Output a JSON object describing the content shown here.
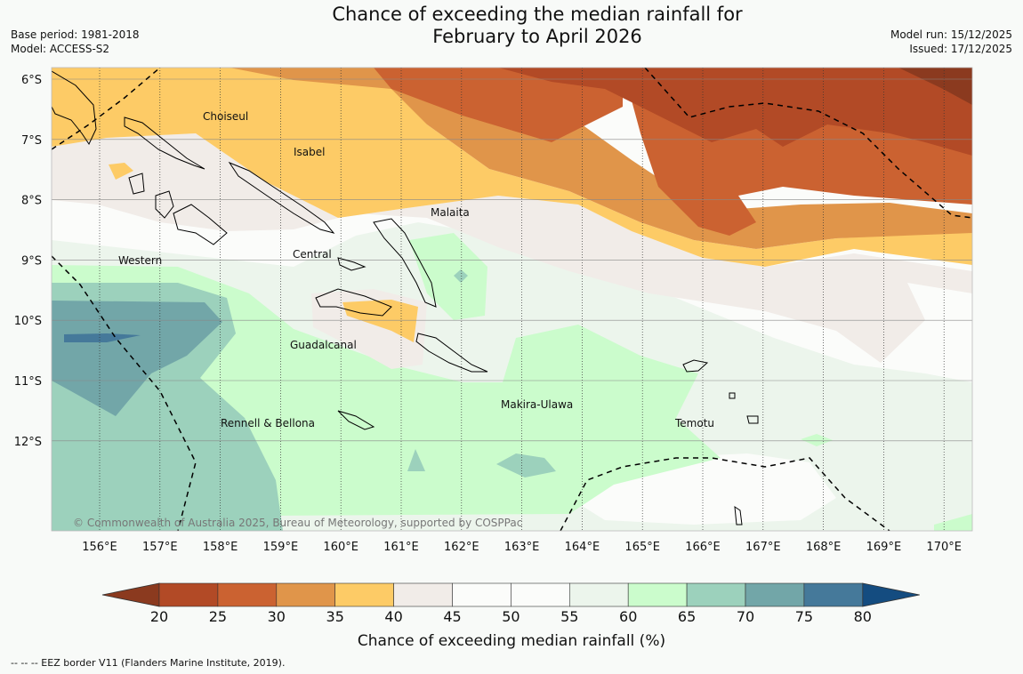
{
  "title": {
    "line1": "Chance of exceeding the median rainfall for",
    "line2": "February to April 2026"
  },
  "meta_left": {
    "base_period": "Base period: 1981-2018",
    "model": "Model: ACCESS-S2"
  },
  "meta_right": {
    "model_run": "Model run: 15/12/2025",
    "issued": "Issued: 17/12/2025"
  },
  "map": {
    "lat_ticks": [
      "6°S",
      "7°S",
      "8°S",
      "9°S",
      "10°S",
      "11°S",
      "12°S"
    ],
    "lon_ticks": [
      "156°E",
      "157°E",
      "158°E",
      "159°E",
      "160°E",
      "161°E",
      "162°E",
      "163°E",
      "164°E",
      "165°E",
      "166°E",
      "167°E",
      "168°E",
      "169°E",
      "170°E"
    ],
    "regions": [
      "Choiseul",
      "Isabel",
      "Malaita",
      "Central",
      "Western",
      "Guadalcanal",
      "Makira-Ulawa",
      "Rennell & Bellona",
      "Temotu"
    ],
    "copyright": "© Commonwealth of Australia 2025, Bureau of Meteorology, supported by COSPPac"
  },
  "colorbar": {
    "ticks": [
      "20",
      "25",
      "30",
      "35",
      "40",
      "45",
      "50",
      "55",
      "60",
      "65",
      "70",
      "75",
      "80"
    ],
    "colors": [
      "#b24a26",
      "#cb6231",
      "#e0954a",
      "#fdcb66",
      "#f1ece8",
      "#fbfcfa",
      "#fbfcfa",
      "#ecf5ec",
      "#cbfccc",
      "#9cd1bc",
      "#72a6a8",
      "#45799a"
    ],
    "under_color": "#8b3a1f",
    "over_color": "#144c80",
    "label": "Chance of exceeding median rainfall (%)"
  },
  "footer": "--  --  -- EEZ border V11 (Flanders Marine Institute, 2019)."
}
